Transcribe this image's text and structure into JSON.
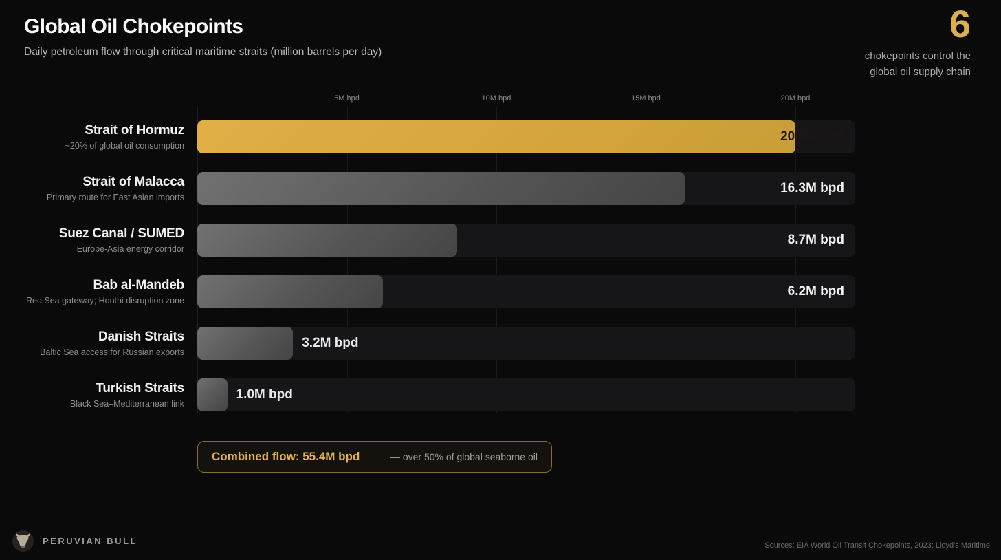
{
  "header": {
    "title": "Global Oil Chokepoints",
    "subtitle": "Daily petroleum flow through critical maritime straits (million barrels per day)",
    "stat_number": "6",
    "stat_caption": "chokepoints control the global oil supply chain"
  },
  "chart_data": {
    "type": "bar",
    "orientation": "horizontal",
    "title": "Global Oil Chokepoints",
    "xlabel": "Flow (million barrels per day)",
    "xlim": [
      0,
      22
    ],
    "grid": "vertical-at-ticks",
    "x_ticks": [
      {
        "value": 5,
        "label": "5M bpd"
      },
      {
        "value": 10,
        "label": "10M bpd"
      },
      {
        "value": 15,
        "label": "15M bpd"
      },
      {
        "value": 20,
        "label": "20M bpd"
      }
    ],
    "rows": [
      {
        "name": "Strait of Hormuz",
        "desc": "~20% of global oil consumption",
        "value": 20.0,
        "value_label": "20.0M bpd",
        "highlight": true,
        "label_inside": true
      },
      {
        "name": "Strait of Malacca",
        "desc": "Primary route for East Asian imports",
        "value": 16.3,
        "value_label": "16.3M bpd",
        "highlight": false,
        "label_inside": true
      },
      {
        "name": "Suez Canal / SUMED",
        "desc": "Europe-Asia energy corridor",
        "value": 8.7,
        "value_label": "8.7M bpd",
        "highlight": false,
        "label_inside": true
      },
      {
        "name": "Bab al-Mandeb",
        "desc": "Red Sea gateway; Houthi disruption zone",
        "value": 6.2,
        "value_label": "6.2M bpd",
        "highlight": false,
        "label_inside": true
      },
      {
        "name": "Danish Straits",
        "desc": "Baltic Sea access for Russian exports",
        "value": 3.2,
        "value_label": "3.2M bpd",
        "highlight": false,
        "label_inside": false
      },
      {
        "name": "Turkish Straits",
        "desc": "Black Sea–Mediterranean link",
        "value": 1.0,
        "value_label": "1.0M bpd",
        "highlight": false,
        "label_inside": false
      }
    ]
  },
  "summary": {
    "highlight": "Combined flow: 55.4M bpd",
    "note": "— over 50% of global seaborne oil"
  },
  "footer": {
    "brand": "PERUVIAN BULL",
    "logo_icon": "bull-icon",
    "sources": "Sources: EIA World Oil Transit Chokepoints, 2023; Lloyd's Maritime"
  },
  "colors": {
    "background": "#0a0a0b",
    "accent_gold": "#dcaf4e",
    "bar_gold": "#d6a63c",
    "bar_gray": "#5c5c5c",
    "bar_track": "#161618",
    "summary_border": "#8a6b2c",
    "text_primary": "#f2f2f2",
    "text_secondary": "#8d8d8d"
  }
}
